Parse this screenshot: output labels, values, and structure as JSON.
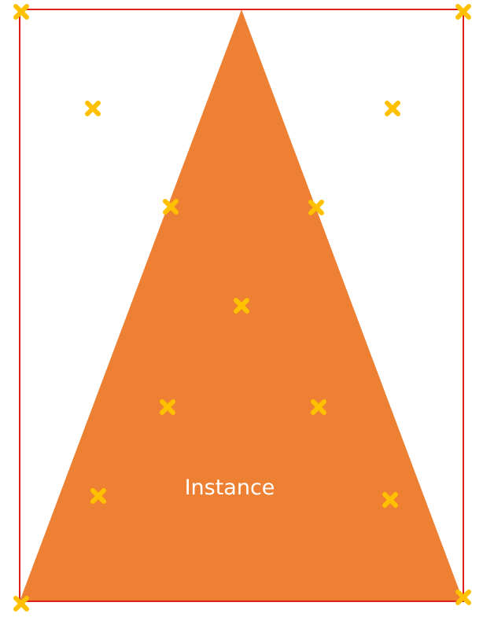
{
  "colors": {
    "triangle_fill": "#ED8032",
    "frame_stroke": "#E0201B",
    "marker": "#FFC000"
  },
  "shape": {
    "label": "Instance"
  },
  "markers": {
    "icon": "cross-marker-icon",
    "count": 13
  }
}
